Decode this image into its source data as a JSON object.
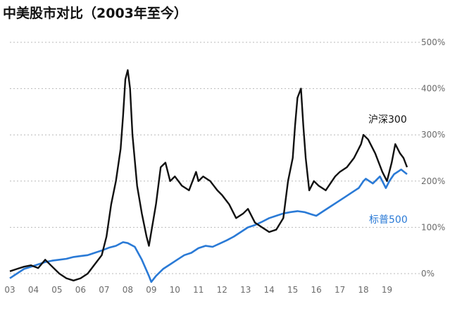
{
  "chart_data": {
    "type": "line",
    "title": "中美股市对比（2003年至今）",
    "xlabel": "",
    "ylabel": "",
    "x_ticks": [
      "03",
      "04",
      "05",
      "06",
      "07",
      "08",
      "09",
      "10",
      "11",
      "12",
      "13",
      "14",
      "15",
      "16",
      "17",
      "18",
      "19"
    ],
    "y_ticks": [
      "0%",
      "100%",
      "200%",
      "300%",
      "400%",
      "500%"
    ],
    "ylim": [
      0,
      500
    ],
    "xlim": [
      2003.0,
      2019.85
    ],
    "grid": true,
    "series": [
      {
        "name": "沪深300",
        "color": "#111111",
        "x": [
          2003.0,
          2003.3,
          2003.6,
          2003.9,
          2004.2,
          2004.5,
          2004.8,
          2005.1,
          2005.4,
          2005.7,
          2006.0,
          2006.3,
          2006.6,
          2006.9,
          2007.1,
          2007.3,
          2007.5,
          2007.7,
          2007.8,
          2007.9,
          2008.0,
          2008.1,
          2008.2,
          2008.4,
          2008.6,
          2008.8,
          2008.9,
          2009.0,
          2009.2,
          2009.4,
          2009.6,
          2009.8,
          2010.0,
          2010.3,
          2010.6,
          2010.9,
          2011.0,
          2011.2,
          2011.5,
          2011.8,
          2012.0,
          2012.3,
          2012.6,
          2012.9,
          2013.1,
          2013.4,
          2013.7,
          2014.0,
          2014.3,
          2014.6,
          2014.8,
          2015.0,
          2015.1,
          2015.2,
          2015.35,
          2015.45,
          2015.55,
          2015.7,
          2015.9,
          2016.1,
          2016.4,
          2016.8,
          2017.0,
          2017.3,
          2017.6,
          2017.9,
          2018.0,
          2018.2,
          2018.5,
          2018.8,
          2019.0,
          2019.2,
          2019.35,
          2019.55,
          2019.7,
          2019.85
        ],
        "values": [
          5,
          10,
          15,
          18,
          12,
          30,
          15,
          0,
          -10,
          -15,
          -10,
          0,
          20,
          40,
          80,
          150,
          200,
          270,
          340,
          420,
          440,
          400,
          300,
          190,
          130,
          80,
          60,
          90,
          150,
          230,
          240,
          200,
          210,
          190,
          180,
          220,
          200,
          210,
          200,
          180,
          170,
          150,
          120,
          130,
          140,
          110,
          100,
          90,
          95,
          120,
          200,
          250,
          320,
          380,
          400,
          320,
          250,
          180,
          200,
          190,
          180,
          210,
          220,
          230,
          250,
          280,
          300,
          290,
          260,
          220,
          200,
          240,
          280,
          260,
          250,
          230
        ]
      },
      {
        "name": "标普500",
        "color": "#2a7ad6",
        "x": [
          2003.0,
          2003.3,
          2003.6,
          2003.9,
          2004.2,
          2004.5,
          2004.8,
          2005.1,
          2005.4,
          2005.7,
          2006.0,
          2006.3,
          2006.6,
          2006.9,
          2007.2,
          2007.5,
          2007.8,
          2008.0,
          2008.3,
          2008.6,
          2008.9,
          2009.0,
          2009.2,
          2009.5,
          2009.8,
          2010.1,
          2010.4,
          2010.7,
          2011.0,
          2011.3,
          2011.6,
          2011.9,
          2012.2,
          2012.5,
          2012.8,
          2013.1,
          2013.4,
          2013.7,
          2014.0,
          2014.3,
          2014.6,
          2014.9,
          2015.2,
          2015.5,
          2015.8,
          2016.0,
          2016.3,
          2016.6,
          2016.9,
          2017.2,
          2017.5,
          2017.8,
          2018.0,
          2018.1,
          2018.4,
          2018.7,
          2018.95,
          2019.1,
          2019.3,
          2019.6,
          2019.85
        ],
        "values": [
          -10,
          0,
          10,
          15,
          20,
          25,
          28,
          30,
          32,
          36,
          38,
          40,
          45,
          50,
          56,
          60,
          68,
          66,
          58,
          30,
          -5,
          -18,
          -5,
          10,
          20,
          30,
          40,
          45,
          55,
          60,
          58,
          65,
          72,
          80,
          90,
          100,
          105,
          112,
          120,
          125,
          130,
          133,
          135,
          133,
          128,
          125,
          135,
          145,
          155,
          165,
          175,
          185,
          200,
          205,
          195,
          210,
          185,
          200,
          215,
          225,
          215
        ]
      }
    ]
  }
}
